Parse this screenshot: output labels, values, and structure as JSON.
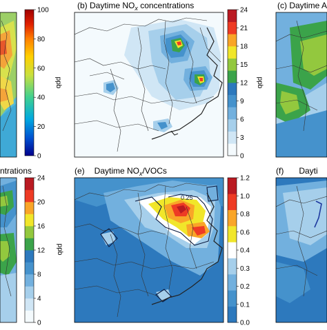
{
  "panels": [
    {
      "id": "a",
      "label": "",
      "title": ""
    },
    {
      "id": "b",
      "label": "(b)",
      "title": "Daytime NO",
      "title_sub": "x",
      "title_suffix": " concentrations"
    },
    {
      "id": "c",
      "label": "(c)",
      "title": "Daytime A"
    },
    {
      "id": "d",
      "label": "",
      "title": "ntrations"
    },
    {
      "id": "e",
      "label": "(e)",
      "title": "Daytime NO",
      "title_sub": "x",
      "title_suffix": "/VOCs"
    },
    {
      "id": "f",
      "label": "(f)",
      "title": "Dayti"
    }
  ],
  "colorbars": [
    {
      "id": "a",
      "unit": "ppb",
      "ticks": [
        "100",
        "80",
        "60",
        "40",
        "20",
        "0"
      ]
    },
    {
      "id": "b",
      "unit": "ppb",
      "ticks": [
        "24",
        "21",
        "18",
        "15",
        "12",
        "9",
        "6",
        "3",
        "0"
      ]
    },
    {
      "id": "d",
      "unit": "ppb",
      "ticks": [
        "24",
        "20",
        "16",
        "12",
        "8",
        "4",
        "0"
      ]
    },
    {
      "id": "e",
      "unit": "",
      "ticks": [
        "1.2",
        "1.0",
        "0.8",
        "0.6",
        "0.4",
        "0.3",
        "0.2",
        "0.1",
        "0.0"
      ]
    }
  ],
  "contour_label": "0.25",
  "colors": {
    "scale_24": [
      "#f4fafd",
      "#d0e6f5",
      "#a6cfeb",
      "#72b0de",
      "#4592cc",
      "#2d79bd",
      "#3ba34a",
      "#93c83e",
      "#f1e62a",
      "#f9a528",
      "#ee3b24",
      "#ba1a22"
    ],
    "scale_e": [
      "#2d79bd",
      "#4592cc",
      "#72b0de",
      "#a6cfeb",
      "#ffffff",
      "#f1e62a",
      "#f9a528",
      "#ee3b24",
      "#ba1a22"
    ],
    "gradient_a": [
      "#00008b",
      "#0050d0",
      "#00a8e0",
      "#40d090",
      "#c8e040",
      "#ffd000",
      "#ff8000",
      "#e02000",
      "#a00000"
    ]
  }
}
